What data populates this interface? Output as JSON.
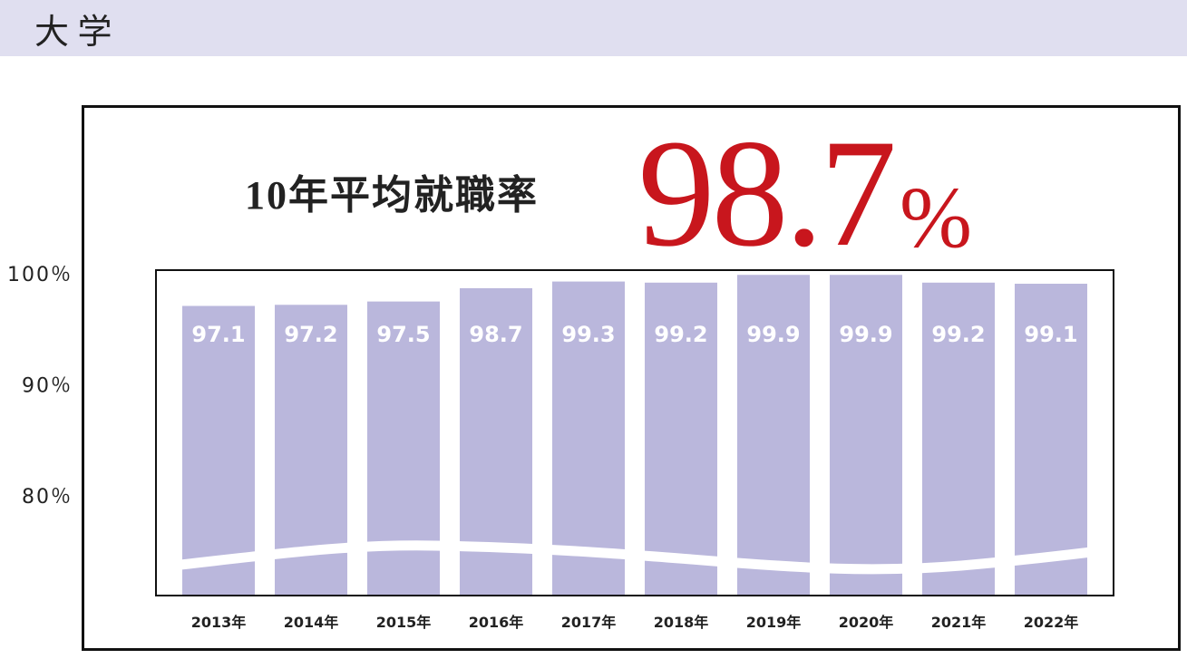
{
  "header": "大 学",
  "chart_data": {
    "type": "bar",
    "title": "10年平均就職率",
    "average_label": "98.7",
    "average_unit": "%",
    "categories": [
      "2013年",
      "2014年",
      "2015年",
      "2016年",
      "2017年",
      "2018年",
      "2019年",
      "2020年",
      "2021年",
      "2022年"
    ],
    "values": [
      97.1,
      97.2,
      97.5,
      98.7,
      99.3,
      99.2,
      99.9,
      99.9,
      99.2,
      99.1
    ],
    "color": "#bab7dc",
    "ylim": [
      71,
      100
    ],
    "yticks": [
      {
        "value": 100,
        "label": "100％"
      },
      {
        "value": 90,
        "label": "90％"
      },
      {
        "value": 80,
        "label": "80％"
      }
    ]
  }
}
